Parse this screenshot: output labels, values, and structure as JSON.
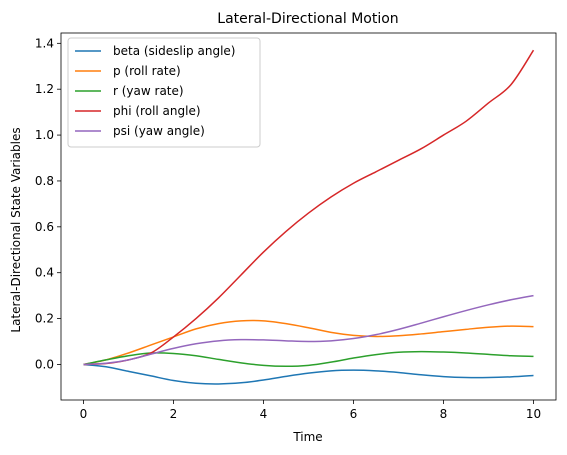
{
  "chart_data": {
    "type": "line",
    "title": "Lateral-Directional Motion",
    "xlabel": "Time",
    "ylabel": "Lateral-Directional State Variables",
    "xlim": [
      -0.5,
      10.5
    ],
    "ylim": [
      -0.155,
      1.445
    ],
    "xticks": [
      0,
      2,
      4,
      6,
      8,
      10
    ],
    "yticks": [
      0.0,
      0.2,
      0.4,
      0.6,
      0.8,
      1.0,
      1.2,
      1.4
    ],
    "xtick_labels": [
      "0",
      "2",
      "4",
      "6",
      "8",
      "10"
    ],
    "ytick_labels": [
      "0.0",
      "0.2",
      "0.4",
      "0.6",
      "0.8",
      "1.0",
      "1.2",
      "1.4"
    ],
    "grid": false,
    "legend_position": "top-left",
    "series": [
      {
        "name": "beta (sideslip angle)",
        "color": "#1f77b4",
        "points": [
          [
            0,
            0
          ],
          [
            0.5,
            -0.01
          ],
          [
            1,
            -0.03
          ],
          [
            1.5,
            -0.05
          ],
          [
            2,
            -0.07
          ],
          [
            2.5,
            -0.082
          ],
          [
            3,
            -0.085
          ],
          [
            3.5,
            -0.08
          ],
          [
            4,
            -0.068
          ],
          [
            4.5,
            -0.052
          ],
          [
            5,
            -0.038
          ],
          [
            5.5,
            -0.028
          ],
          [
            6,
            -0.025
          ],
          [
            6.5,
            -0.028
          ],
          [
            7,
            -0.035
          ],
          [
            7.5,
            -0.045
          ],
          [
            8,
            -0.053
          ],
          [
            8.5,
            -0.057
          ],
          [
            9,
            -0.057
          ],
          [
            9.5,
            -0.054
          ],
          [
            10,
            -0.048
          ]
        ]
      },
      {
        "name": "p (roll rate)",
        "color": "#ff7f0e",
        "points": [
          [
            0,
            0
          ],
          [
            0.5,
            0.02
          ],
          [
            1,
            0.05
          ],
          [
            1.5,
            0.085
          ],
          [
            2,
            0.12
          ],
          [
            2.5,
            0.155
          ],
          [
            3,
            0.178
          ],
          [
            3.5,
            0.19
          ],
          [
            4,
            0.19
          ],
          [
            4.5,
            0.178
          ],
          [
            5,
            0.16
          ],
          [
            5.5,
            0.14
          ],
          [
            6,
            0.127
          ],
          [
            6.5,
            0.122
          ],
          [
            7,
            0.125
          ],
          [
            7.5,
            0.133
          ],
          [
            8,
            0.143
          ],
          [
            8.5,
            0.153
          ],
          [
            9,
            0.162
          ],
          [
            9.5,
            0.167
          ],
          [
            10,
            0.165
          ]
        ]
      },
      {
        "name": "r (yaw rate)",
        "color": "#2ca02c",
        "points": [
          [
            0,
            0
          ],
          [
            0.5,
            0.02
          ],
          [
            1,
            0.038
          ],
          [
            1.5,
            0.05
          ],
          [
            2,
            0.048
          ],
          [
            2.5,
            0.038
          ],
          [
            3,
            0.022
          ],
          [
            3.5,
            0.007
          ],
          [
            4,
            -0.004
          ],
          [
            4.5,
            -0.008
          ],
          [
            5,
            -0.004
          ],
          [
            5.5,
            0.01
          ],
          [
            6,
            0.028
          ],
          [
            6.5,
            0.043
          ],
          [
            7,
            0.053
          ],
          [
            7.5,
            0.056
          ],
          [
            8,
            0.054
          ],
          [
            8.5,
            0.05
          ],
          [
            9,
            0.044
          ],
          [
            9.5,
            0.038
          ],
          [
            10,
            0.035
          ]
        ]
      },
      {
        "name": "phi (roll angle)",
        "color": "#d62728",
        "points": [
          [
            0,
            0
          ],
          [
            0.5,
            0.004
          ],
          [
            1,
            0.02
          ],
          [
            1.5,
            0.05
          ],
          [
            2,
            0.12
          ],
          [
            2.5,
            0.2
          ],
          [
            3,
            0.29
          ],
          [
            3.5,
            0.39
          ],
          [
            4,
            0.49
          ],
          [
            4.5,
            0.58
          ],
          [
            5,
            0.66
          ],
          [
            5.5,
            0.73
          ],
          [
            6,
            0.79
          ],
          [
            6.5,
            0.84
          ],
          [
            7,
            0.89
          ],
          [
            7.5,
            0.94
          ],
          [
            8,
            1.0
          ],
          [
            8.5,
            1.06
          ],
          [
            9,
            1.14
          ],
          [
            9.5,
            1.22
          ],
          [
            10,
            1.37
          ]
        ]
      },
      {
        "name": "psi (yaw angle)",
        "color": "#9467bd",
        "points": [
          [
            0,
            0
          ],
          [
            0.5,
            0.005
          ],
          [
            1,
            0.02
          ],
          [
            1.5,
            0.045
          ],
          [
            2,
            0.07
          ],
          [
            2.5,
            0.09
          ],
          [
            3,
            0.103
          ],
          [
            3.5,
            0.108
          ],
          [
            4,
            0.107
          ],
          [
            4.5,
            0.103
          ],
          [
            5,
            0.1
          ],
          [
            5.5,
            0.103
          ],
          [
            6,
            0.113
          ],
          [
            6.5,
            0.13
          ],
          [
            7,
            0.153
          ],
          [
            7.5,
            0.18
          ],
          [
            8,
            0.208
          ],
          [
            8.5,
            0.235
          ],
          [
            9,
            0.26
          ],
          [
            9.5,
            0.282
          ],
          [
            10,
            0.3
          ]
        ]
      }
    ]
  }
}
